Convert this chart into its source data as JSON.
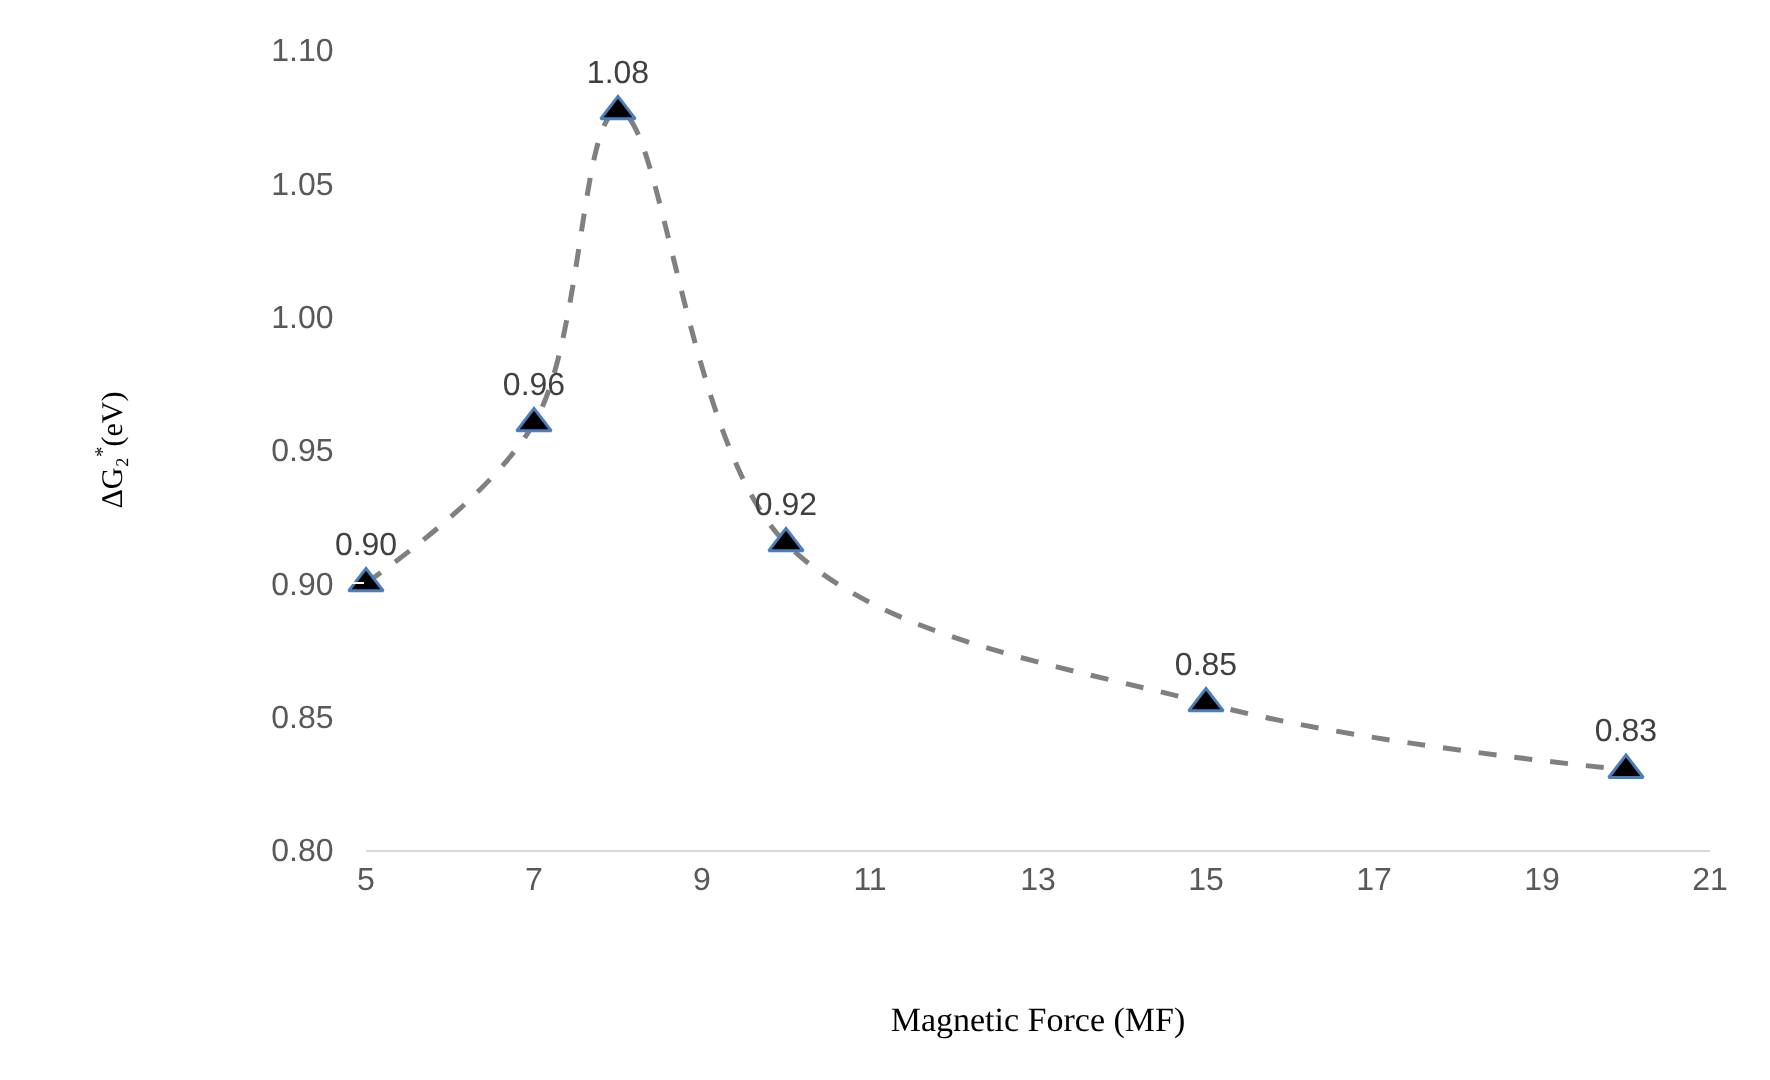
{
  "chart_data": {
    "type": "line",
    "xlabel": "Magnetic Force (MF)",
    "ylabel": "ΔG₂$^{*}$(eV)",
    "x": [
      5,
      7,
      8,
      10,
      15,
      20
    ],
    "series": [
      {
        "color": "#808080",
        "values": [
          0.9,
          0.96,
          1.077,
          0.915,
          0.855,
          0.83
        ]
      }
    ],
    "value_labels": [
      "0.90",
      "0.96",
      "1.08",
      "0.92",
      "0.85",
      "0.83"
    ],
    "xlim": [
      5,
      21
    ],
    "xticks": [
      5,
      7,
      9,
      11,
      13,
      15,
      17,
      19,
      21
    ],
    "ylim": [
      0.8,
      1.1
    ],
    "yticks": [
      {
        "value": 0.8,
        "label": "0.80"
      },
      {
        "value": 0.85,
        "label": "0.85"
      },
      {
        "value": 0.9,
        "label": "0.90"
      },
      {
        "value": 0.95,
        "label": "0.95"
      },
      {
        "value": 1.0,
        "label": "1.00"
      },
      {
        "value": 1.05,
        "label": "1.05"
      },
      {
        "value": 1.1,
        "label": "1.10"
      }
    ],
    "marker": "triangle",
    "line_style": "dashed"
  }
}
